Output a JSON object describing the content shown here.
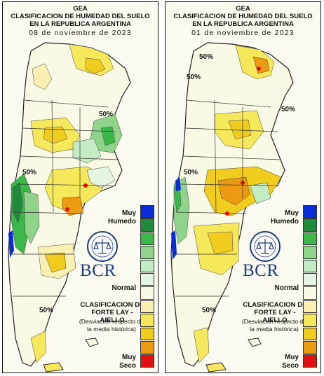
{
  "panels": [
    {
      "header": [
        "GEA",
        "CLASIFICACION DE HUMEDAD DEL SUELO",
        "EN LA REPUBLICA ARGENTINA"
      ],
      "date": "08 de noviembre de 2023",
      "isolines": [
        "50%",
        "50%",
        "50%"
      ]
    },
    {
      "header": [
        "GEA",
        "CLASIFICACION DE HUMEDAD DEL SUELO",
        "EN LA REPUBLICA ARGENTINA"
      ],
      "date": "01 de noviembre de 2023",
      "isolines": [
        "50%",
        "50%",
        "50%",
        "50%",
        "50%"
      ]
    }
  ],
  "legend": {
    "top_label_1": "Muy",
    "top_label_2": "Humedo",
    "middle_label": "Normal",
    "bottom_label_1": "Muy",
    "bottom_label_2": "Seco",
    "colors": [
      "#0a2bd8",
      "#1e8a3a",
      "#3cb84a",
      "#8fd48a",
      "#c4ecc4",
      "#e6f4e2",
      "#f9f9e6",
      "#faf0b4",
      "#f5e85a",
      "#f0cc1e",
      "#ec9a12",
      "#e01010"
    ]
  },
  "brand": {
    "name": "BCR",
    "seal_text": "BOLSA DE COMERCIO DE ROSARIO",
    "classification_line_1": "CLASIFICACION DE",
    "classification_line_2": "FORTE LAY - AIELLO",
    "deviation_line_1": "(Desviación respecto de",
    "deviation_line_2": "la media histórica)"
  },
  "colors": {
    "dry": "#f0cc1e",
    "very_dry": "#e01010",
    "wet": "#3cb84a",
    "very_wet": "#0a2bd8",
    "normal": "#f9f9e6"
  }
}
